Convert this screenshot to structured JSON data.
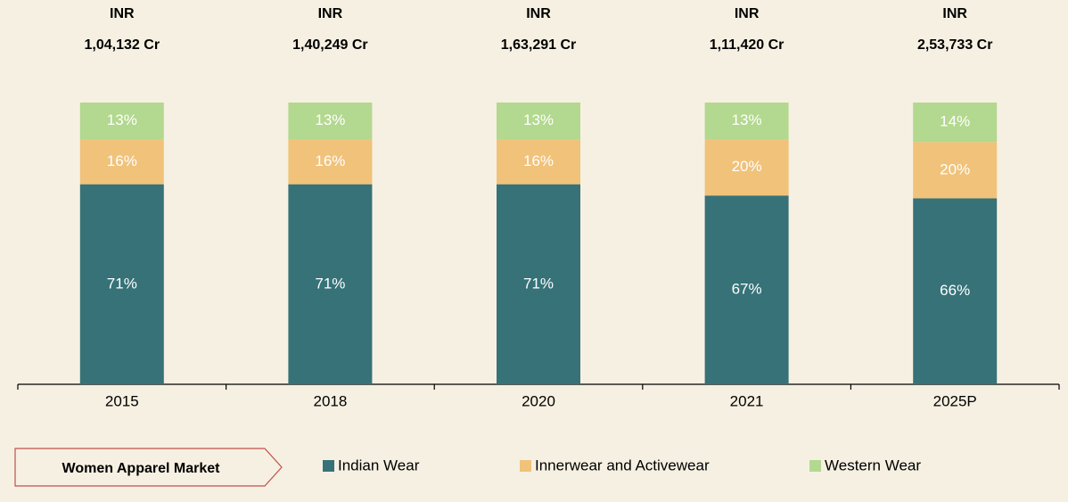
{
  "chart_data": {
    "type": "stacked_bar_100",
    "categories": [
      "2015",
      "2018",
      "2020",
      "2021",
      "2025P"
    ],
    "total_labels": [
      {
        "currency": "INR",
        "amount": "1,04,132 Cr"
      },
      {
        "currency": "INR",
        "amount": "1,40,249 Cr"
      },
      {
        "currency": "INR",
        "amount": "1,63,291 Cr"
      },
      {
        "currency": "INR",
        "amount": "1,11,420 Cr"
      },
      {
        "currency": "INR",
        "amount": "2,53,733 Cr"
      }
    ],
    "series": [
      {
        "name": "Indian Wear",
        "color": "#367278",
        "values": [
          71,
          71,
          71,
          67,
          66
        ],
        "value_labels": [
          "71%",
          "71%",
          "71%",
          "67%",
          "66%"
        ]
      },
      {
        "name": "Innerwear and Activewear",
        "color": "#f1c27a",
        "values": [
          16,
          16,
          16,
          20,
          20
        ],
        "value_labels": [
          "16%",
          "16%",
          "16%",
          "20%",
          "20%"
        ]
      },
      {
        "name": "Western Wear",
        "color": "#b3d88f",
        "values": [
          13,
          13,
          13,
          13,
          14
        ],
        "value_labels": [
          "13%",
          "13%",
          "13%",
          "13%",
          "14%"
        ]
      }
    ],
    "ylim": [
      0,
      100
    ],
    "legend_title": "Women Apparel Market"
  }
}
